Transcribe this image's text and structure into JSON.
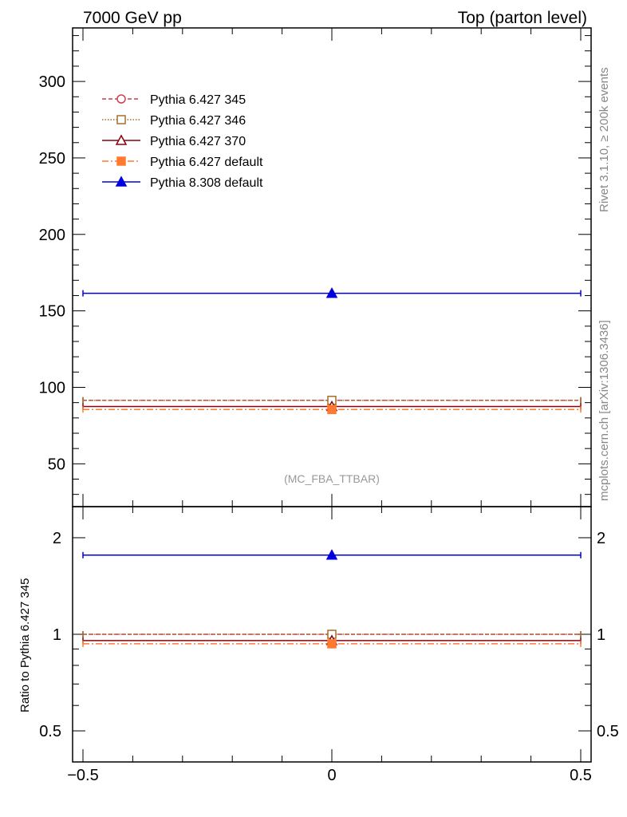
{
  "header": {
    "left": "7000 GeV pp",
    "right": "Top (parton level)"
  },
  "side_labels": {
    "rivet": "Rivet 3.1.10, ≥ 200k events",
    "mcplots": "mcplots.cern.ch [arXiv:1306.3436]"
  },
  "analysis_label": "(MC_FBA_TTBAR)",
  "chart_data": [
    {
      "type": "line",
      "panel": "main",
      "x_range": [
        -0.5,
        0.5
      ],
      "ylim": [
        22,
        335
      ],
      "yticks": [
        50,
        100,
        150,
        200,
        250,
        300
      ],
      "ytick_labels": [
        "50",
        "100",
        "150",
        "200",
        "250",
        "300"
      ],
      "ylabel": "",
      "legend_position": "top-left",
      "series": [
        {
          "name": "Pythia 6.427 345",
          "color": "#d23c4f",
          "dash": "5,3",
          "marker": "circle-open",
          "x": 0,
          "y": 91.5
        },
        {
          "name": "Pythia 6.427 346",
          "color": "#a0702a",
          "dash": "1.5,2",
          "marker": "square-open",
          "x": 0,
          "y": 91.5
        },
        {
          "name": "Pythia 6.427 370",
          "color": "#8b0010",
          "dash": "",
          "marker": "triangle-open",
          "x": 0,
          "y": 87.5
        },
        {
          "name": "Pythia 6.427 default",
          "color": "#ff7a30",
          "dash": "8,3,2,3",
          "marker": "square-filled",
          "x": 0,
          "y": 85.5
        },
        {
          "name": "Pythia 8.308 default",
          "color": "#0000e0",
          "dash": "",
          "marker": "triangle-filled",
          "x": 0,
          "y": 161.5
        }
      ]
    },
    {
      "type": "line",
      "panel": "ratio",
      "x_range": [
        -0.5,
        0.5
      ],
      "ylim": [
        0.4,
        2.5
      ],
      "log_y": true,
      "yticks": [
        0.5,
        1,
        2
      ],
      "ytick_labels": [
        "0.5",
        "1",
        "2"
      ],
      "ylabel": "Ratio to Pythia 6.427 345",
      "xticks": [
        -0.5,
        0,
        0.5
      ],
      "xtick_labels": [
        "−0.5",
        "0",
        "0.5"
      ],
      "series": [
        {
          "name": "Pythia 6.427 345",
          "x": 0,
          "y": 1.0
        },
        {
          "name": "Pythia 6.427 346",
          "x": 0,
          "y": 1.0
        },
        {
          "name": "Pythia 6.427 370",
          "x": 0,
          "y": 0.956
        },
        {
          "name": "Pythia 6.427 default",
          "x": 0,
          "y": 0.934
        },
        {
          "name": "Pythia 8.308 default",
          "x": 0,
          "y": 1.765
        }
      ]
    }
  ]
}
